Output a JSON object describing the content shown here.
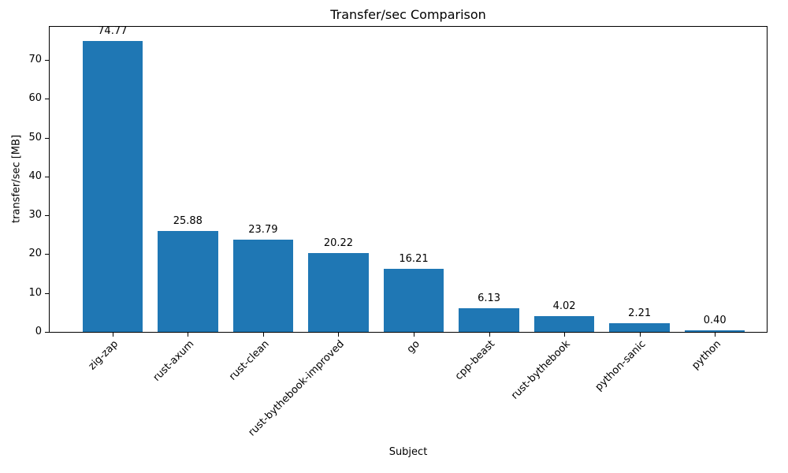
{
  "chart_data": {
    "type": "bar",
    "title": "Transfer/sec Comparison",
    "xlabel": "Subject",
    "ylabel": "transfer/sec [MB]",
    "categories": [
      "zig-zap",
      "rust-axum",
      "rust-clean",
      "rust-bythebook-improved",
      "go",
      "cpp-beast",
      "rust-bythebook",
      "python-sanic",
      "python"
    ],
    "values": [
      74.77,
      25.88,
      23.79,
      20.22,
      16.21,
      6.13,
      4.02,
      2.21,
      0.4
    ],
    "value_labels": [
      "74.77",
      "25.88",
      "23.79",
      "20.22",
      "16.21",
      "6.13",
      "4.02",
      "2.21",
      "0.40"
    ],
    "yticks": [
      0,
      10,
      20,
      30,
      40,
      50,
      60,
      70
    ],
    "ylim": [
      0,
      78.5
    ],
    "bar_color": "#1f77b4",
    "axis_color": "#000000",
    "text_color": "#000000",
    "grid": false,
    "legend": null,
    "x_tick_rotation_deg": 45,
    "bar_width_fraction": 0.8
  }
}
